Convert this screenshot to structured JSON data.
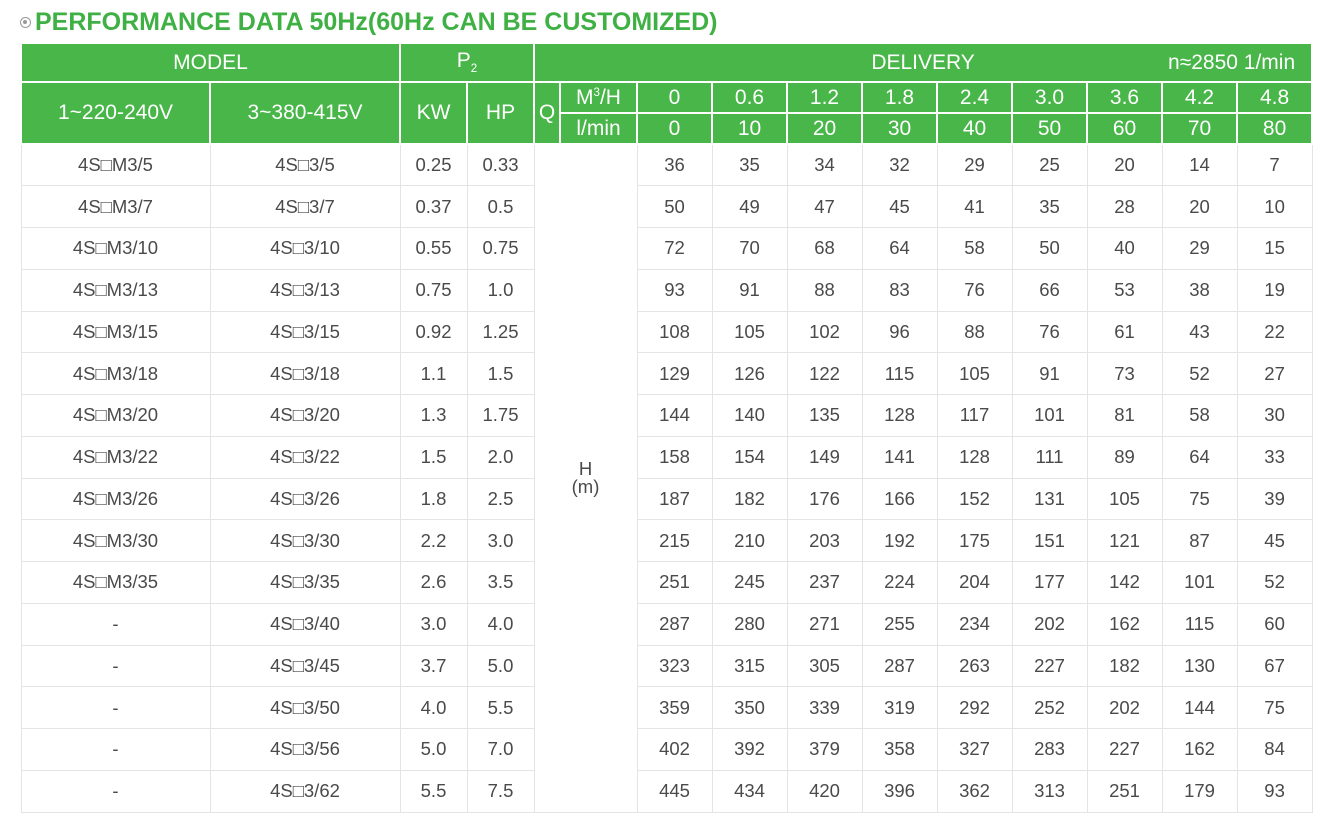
{
  "title": "PERFORMANCE DATA 50Hz(60Hz CAN BE CUSTOMIZED)",
  "header": {
    "model": "MODEL",
    "p2": "P",
    "p2_sub": "2",
    "delivery": "DELIVERY",
    "speed": "n≈2850 1/min",
    "col_1ph": "1~220-240V",
    "col_3ph": "3~380-415V",
    "kw": "KW",
    "hp": "HP",
    "q": "Q",
    "m3h": "M",
    "m3h_sup": "3",
    "m3h_tail": "/H",
    "lmin": "l/min",
    "flow_m3h": [
      "0",
      "0.6",
      "1.2",
      "1.8",
      "2.4",
      "3.0",
      "3.6",
      "4.2",
      "4.8"
    ],
    "flow_lmin": [
      "0",
      "10",
      "20",
      "30",
      "40",
      "50",
      "60",
      "70",
      "80"
    ],
    "h_label": "H",
    "h_unit": "(m)"
  },
  "rows": [
    {
      "m1": "4S□M3/5",
      "m3": "4S□3/5",
      "kw": "0.25",
      "hp": "0.33",
      "h": [
        "36",
        "35",
        "34",
        "32",
        "29",
        "25",
        "20",
        "14",
        "7"
      ]
    },
    {
      "m1": "4S□M3/7",
      "m3": "4S□3/7",
      "kw": "0.37",
      "hp": "0.5",
      "h": [
        "50",
        "49",
        "47",
        "45",
        "41",
        "35",
        "28",
        "20",
        "10"
      ]
    },
    {
      "m1": "4S□M3/10",
      "m3": "4S□3/10",
      "kw": "0.55",
      "hp": "0.75",
      "h": [
        "72",
        "70",
        "68",
        "64",
        "58",
        "50",
        "40",
        "29",
        "15"
      ]
    },
    {
      "m1": "4S□M3/13",
      "m3": "4S□3/13",
      "kw": "0.75",
      "hp": "1.0",
      "h": [
        "93",
        "91",
        "88",
        "83",
        "76",
        "66",
        "53",
        "38",
        "19"
      ]
    },
    {
      "m1": "4S□M3/15",
      "m3": "4S□3/15",
      "kw": "0.92",
      "hp": "1.25",
      "h": [
        "108",
        "105",
        "102",
        "96",
        "88",
        "76",
        "61",
        "43",
        "22"
      ]
    },
    {
      "m1": "4S□M3/18",
      "m3": "4S□3/18",
      "kw": "1.1",
      "hp": "1.5",
      "h": [
        "129",
        "126",
        "122",
        "115",
        "105",
        "91",
        "73",
        "52",
        "27"
      ]
    },
    {
      "m1": "4S□M3/20",
      "m3": "4S□3/20",
      "kw": "1.3",
      "hp": "1.75",
      "h": [
        "144",
        "140",
        "135",
        "128",
        "117",
        "101",
        "81",
        "58",
        "30"
      ]
    },
    {
      "m1": "4S□M3/22",
      "m3": "4S□3/22",
      "kw": "1.5",
      "hp": "2.0",
      "h": [
        "158",
        "154",
        "149",
        "141",
        "128",
        "111",
        "89",
        "64",
        "33"
      ]
    },
    {
      "m1": "4S□M3/26",
      "m3": "4S□3/26",
      "kw": "1.8",
      "hp": "2.5",
      "h": [
        "187",
        "182",
        "176",
        "166",
        "152",
        "131",
        "105",
        "75",
        "39"
      ]
    },
    {
      "m1": "4S□M3/30",
      "m3": "4S□3/30",
      "kw": "2.2",
      "hp": "3.0",
      "h": [
        "215",
        "210",
        "203",
        "192",
        "175",
        "151",
        "121",
        "87",
        "45"
      ]
    },
    {
      "m1": "4S□M3/35",
      "m3": "4S□3/35",
      "kw": "2.6",
      "hp": "3.5",
      "h": [
        "251",
        "245",
        "237",
        "224",
        "204",
        "177",
        "142",
        "101",
        "52"
      ]
    },
    {
      "m1": "-",
      "m3": "4S□3/40",
      "kw": "3.0",
      "hp": "4.0",
      "h": [
        "287",
        "280",
        "271",
        "255",
        "234",
        "202",
        "162",
        "115",
        "60"
      ]
    },
    {
      "m1": "-",
      "m3": "4S□3/45",
      "kw": "3.7",
      "hp": "5.0",
      "h": [
        "323",
        "315",
        "305",
        "287",
        "263",
        "227",
        "182",
        "130",
        "67"
      ]
    },
    {
      "m1": "-",
      "m3": "4S□3/50",
      "kw": "4.0",
      "hp": "5.5",
      "h": [
        "359",
        "350",
        "339",
        "319",
        "292",
        "252",
        "202",
        "144",
        "75"
      ]
    },
    {
      "m1": "-",
      "m3": "4S□3/56",
      "kw": "5.0",
      "hp": "7.0",
      "h": [
        "402",
        "392",
        "379",
        "358",
        "327",
        "283",
        "227",
        "162",
        "84"
      ]
    },
    {
      "m1": "-",
      "m3": "4S□3/62",
      "kw": "5.5",
      "hp": "7.5",
      "h": [
        "445",
        "434",
        "420",
        "396",
        "362",
        "313",
        "251",
        "179",
        "93"
      ]
    }
  ],
  "footnote": ""
}
